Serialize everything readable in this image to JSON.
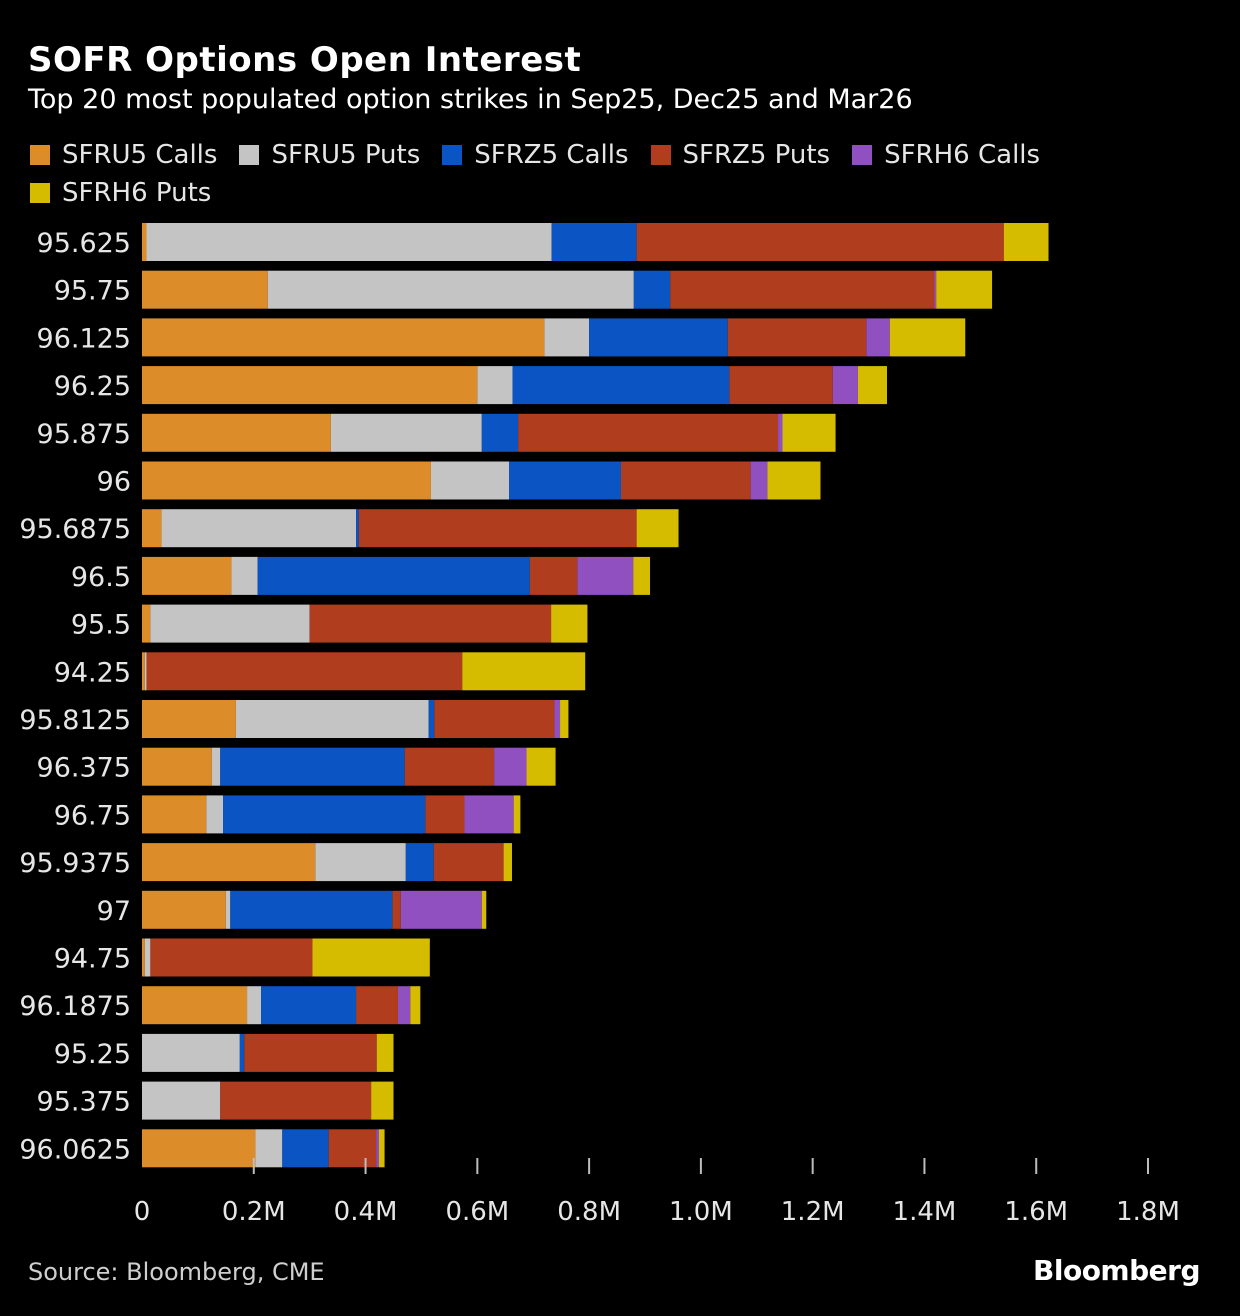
{
  "header": {
    "title": "SOFR Options Open Interest",
    "subtitle": "Top 20 most populated option strikes in Sep25, Dec25 and Mar26"
  },
  "footer": {
    "source": "Source: Bloomberg, CME",
    "logo": "Bloomberg"
  },
  "chart_data": {
    "type": "bar",
    "orientation": "horizontal",
    "stacked": true,
    "title": "SOFR Options Open Interest",
    "subtitle": "Top 20 most populated option strikes in Sep25, Dec25 and Mar26",
    "xlabel": "",
    "ylabel": "",
    "xlim": [
      0,
      1800000
    ],
    "x_ticks": [
      0,
      200000,
      400000,
      600000,
      800000,
      1000000,
      1200000,
      1400000,
      1600000,
      1800000
    ],
    "x_tick_labels": [
      "0",
      "0.2M",
      "0.4M",
      "0.6M",
      "0.8M",
      "1.0M",
      "1.2M",
      "1.4M",
      "1.6M",
      "1.8M"
    ],
    "grid": false,
    "legend_position": "top-left",
    "categories": [
      "95.625",
      "95.75",
      "96.125",
      "96.25",
      "95.875",
      "96",
      "95.6875",
      "96.5",
      "95.5",
      "94.25",
      "95.8125",
      "96.375",
      "96.75",
      "95.9375",
      "97",
      "94.75",
      "96.1875",
      "95.25",
      "95.375",
      "96.0625"
    ],
    "series": [
      {
        "name": "SFRU5 Calls",
        "color": "#dc8c28",
        "values": [
          8000,
          225000,
          720000,
          600000,
          338000,
          517000,
          35000,
          160000,
          15000,
          5000,
          168000,
          125000,
          115000,
          310000,
          150000,
          5000,
          188000,
          0,
          0,
          203000
        ]
      },
      {
        "name": "SFRU5 Puts",
        "color": "#c4c4c4",
        "values": [
          725000,
          655000,
          80000,
          63000,
          270000,
          140000,
          348000,
          47000,
          285000,
          3000,
          345000,
          15000,
          30000,
          162000,
          8000,
          10000,
          25000,
          175000,
          140000,
          48000
        ]
      },
      {
        "name": "SFRZ5 Calls",
        "color": "#0a55c3",
        "values": [
          152000,
          65000,
          248000,
          388000,
          65000,
          200000,
          5000,
          487000,
          0,
          0,
          10000,
          330000,
          362000,
          50000,
          290000,
          0,
          170000,
          8000,
          0,
          83000
        ]
      },
      {
        "name": "SFRZ5 Puts",
        "color": "#b03d1d",
        "values": [
          657000,
          473000,
          248000,
          185000,
          465000,
          232000,
          497000,
          85000,
          432000,
          565000,
          215000,
          160000,
          70000,
          125000,
          15000,
          290000,
          75000,
          237000,
          270000,
          85000
        ]
      },
      {
        "name": "SFRH6 Calls",
        "color": "#9150c0",
        "values": [
          0,
          3000,
          42000,
          45000,
          8000,
          30000,
          0,
          100000,
          0,
          0,
          10000,
          58000,
          88000,
          0,
          145000,
          0,
          22000,
          0,
          0,
          5000
        ]
      },
      {
        "name": "SFRH6 Puts",
        "color": "#d6bc00",
        "values": [
          80000,
          100000,
          135000,
          52000,
          95000,
          95000,
          75000,
          30000,
          65000,
          220000,
          15000,
          52000,
          12000,
          15000,
          8000,
          210000,
          18000,
          30000,
          40000,
          10000
        ]
      }
    ]
  }
}
